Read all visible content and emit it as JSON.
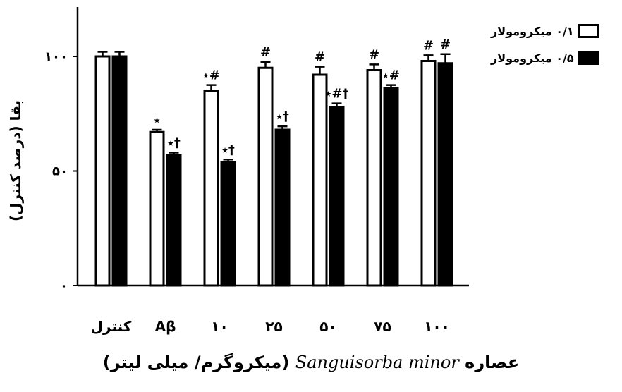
{
  "chart_data": {
    "type": "bar",
    "categories": [
      "کنترل",
      "Aβ",
      "۱۰",
      "۲۵",
      "۵۰",
      "۷۵",
      "۱۰۰"
    ],
    "series": [
      {
        "name": "۰/۱ میکرومولار",
        "color": "#ffffff",
        "values": [
          100,
          67,
          85,
          95,
          92,
          94,
          98
        ],
        "errors": [
          2,
          1,
          2.5,
          2.5,
          3.5,
          2.5,
          2.5
        ],
        "annotations": [
          "",
          "٭",
          "٭#",
          "#",
          "#",
          "#",
          "#"
        ]
      },
      {
        "name": "۰/۵ میکرومولار",
        "color": "#000000",
        "values": [
          100,
          57,
          54,
          68,
          78,
          86,
          97
        ],
        "errors": [
          2,
          1,
          1,
          1.5,
          1.5,
          1.5,
          4
        ],
        "annotations": [
          "",
          "٭†",
          "٭†",
          "٭†",
          "٭#†",
          "٭#",
          "#"
        ]
      }
    ],
    "yticks": [
      {
        "value": 0,
        "label": "۰"
      },
      {
        "value": 50,
        "label": "۵۰"
      },
      {
        "value": 100,
        "label": "۱۰۰"
      }
    ],
    "ylim": [
      0,
      120
    ],
    "ylabel": "بقا (درصد کنترل)",
    "xlabel": {
      "prefix": "عصاره",
      "species": "Sanguisorba minor",
      "unit": "(میکروگرم/ میلی لیتر)"
    },
    "legend_position": "top-right",
    "grid": false
  }
}
